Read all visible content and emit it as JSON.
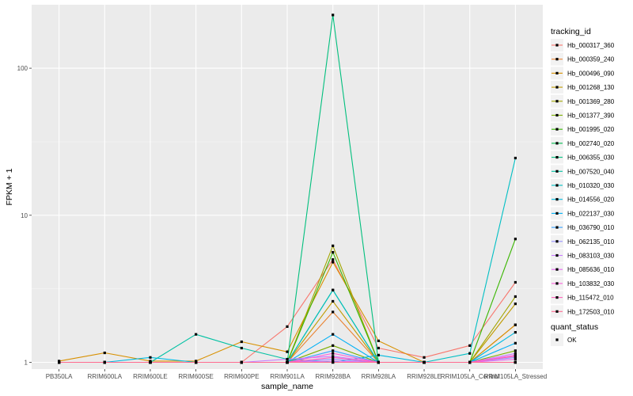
{
  "chart_data": {
    "type": "line",
    "title": "",
    "xlabel": "sample_name",
    "ylabel": "FPKM + 1",
    "y_scale": "log10",
    "ylim": [
      0.9,
      270
    ],
    "y_ticks": [
      1,
      10,
      100
    ],
    "y_tick_labels": [
      "1",
      "10",
      "100"
    ],
    "grid": true,
    "legend_placement": "right",
    "categories": [
      "PB350LA",
      "RRIM600LA",
      "RRIM600LE",
      "RRIM600SE",
      "RRIM600PE",
      "RRIM901LA",
      "RRIM928BA",
      "RRIM928LA",
      "RRIM928LE",
      "RRIM105LA_Control",
      "RRIM105LA_Stressed"
    ],
    "legend": {
      "color_title": "tracking_id",
      "shape_title": "quant_status",
      "shape_entries": [
        "OK"
      ]
    },
    "series": [
      {
        "name": "Hb_000317_360",
        "color": "#F8766D",
        "values": [
          1.0,
          1.0,
          1.0,
          1.0,
          1.0,
          1.75,
          5.0,
          1.25,
          1.08,
          1.3,
          3.5
        ]
      },
      {
        "name": "Hb_000359_240",
        "color": "#EA8331",
        "values": [
          1.0,
          1.0,
          1.0,
          1.0,
          1.0,
          1.0,
          2.2,
          1.0,
          1.0,
          1.0,
          1.8
        ]
      },
      {
        "name": "Hb_000496_090",
        "color": "#D89000",
        "values": [
          1.02,
          1.16,
          1.02,
          1.02,
          1.38,
          1.18,
          4.8,
          1.4,
          1.0,
          1.0,
          1.8
        ]
      },
      {
        "name": "Hb_001268_130",
        "color": "#C09B00",
        "values": [
          1.0,
          1.0,
          1.0,
          1.0,
          1.0,
          1.0,
          2.6,
          1.0,
          1.0,
          1.0,
          2.5
        ]
      },
      {
        "name": "Hb_001369_280",
        "color": "#A3A500",
        "values": [
          1.0,
          1.0,
          1.0,
          1.0,
          1.0,
          1.0,
          6.2,
          1.0,
          1.0,
          1.0,
          2.8
        ]
      },
      {
        "name": "Hb_001377_390",
        "color": "#7CAE00",
        "values": [
          1.0,
          1.0,
          1.0,
          1.0,
          1.0,
          1.0,
          1.3,
          1.0,
          1.0,
          1.0,
          1.2
        ]
      },
      {
        "name": "Hb_001995_020",
        "color": "#39B600",
        "values": [
          1.0,
          1.0,
          1.0,
          1.0,
          1.0,
          1.0,
          5.6,
          1.0,
          1.0,
          1.0,
          6.9
        ]
      },
      {
        "name": "Hb_002740_020",
        "color": "#00BB4E",
        "values": [
          1.0,
          1.0,
          1.0,
          1.0,
          1.0,
          1.0,
          3.1,
          1.0,
          1.0,
          1.0,
          1.0
        ]
      },
      {
        "name": "Hb_006355_030",
        "color": "#00BF7D",
        "values": [
          1.0,
          1.0,
          1.0,
          1.0,
          1.0,
          1.0,
          230,
          1.0,
          1.0,
          1.0,
          1.0
        ]
      },
      {
        "name": "Hb_007520_040",
        "color": "#00C1A3",
        "values": [
          1.0,
          1.0,
          1.0,
          1.55,
          1.25,
          1.05,
          1.0,
          1.0,
          1.0,
          1.0,
          1.0
        ]
      },
      {
        "name": "Hb_010320_030",
        "color": "#00BFC4",
        "values": [
          1.0,
          1.0,
          1.0,
          1.0,
          1.0,
          1.0,
          3.1,
          1.0,
          1.0,
          1.15,
          24.5
        ]
      },
      {
        "name": "Hb_014556_020",
        "color": "#00BAE0",
        "values": [
          1.0,
          1.0,
          1.08,
          1.0,
          1.0,
          1.0,
          1.0,
          1.12,
          1.0,
          1.0,
          1.6
        ]
      },
      {
        "name": "Hb_022137_030",
        "color": "#00B0F6",
        "values": [
          1.0,
          1.0,
          1.0,
          1.0,
          1.0,
          1.0,
          1.55,
          1.0,
          1.0,
          1.0,
          1.35
        ]
      },
      {
        "name": "Hb_036790_010",
        "color": "#35A2FF",
        "values": [
          1.0,
          1.0,
          1.0,
          1.0,
          1.0,
          1.0,
          1.2,
          1.0,
          1.0,
          1.0,
          1.0
        ]
      },
      {
        "name": "Hb_062135_010",
        "color": "#9590FF",
        "values": [
          1.0,
          1.0,
          1.0,
          1.0,
          1.0,
          1.0,
          1.05,
          1.0,
          1.0,
          1.0,
          1.08
        ]
      },
      {
        "name": "Hb_083103_030",
        "color": "#C77CFF",
        "values": [
          1.0,
          1.0,
          1.0,
          1.0,
          1.0,
          1.05,
          1.1,
          1.0,
          1.0,
          1.0,
          1.15
        ]
      },
      {
        "name": "Hb_085636_010",
        "color": "#E76BF3",
        "values": [
          1.0,
          1.0,
          1.0,
          1.0,
          1.0,
          1.0,
          1.02,
          1.0,
          1.0,
          1.0,
          1.05
        ]
      },
      {
        "name": "Hb_103832_030",
        "color": "#FA62DB",
        "values": [
          1.0,
          1.0,
          1.0,
          1.0,
          1.0,
          1.0,
          1.15,
          1.0,
          1.0,
          1.0,
          1.12
        ]
      },
      {
        "name": "Hb_115472_010",
        "color": "#FF62BC",
        "values": [
          1.0,
          1.0,
          1.0,
          1.0,
          1.0,
          1.0,
          1.08,
          1.0,
          1.0,
          1.0,
          1.1
        ]
      },
      {
        "name": "Hb_172503_010",
        "color": "#FF6C91",
        "values": [
          1.0,
          1.0,
          1.0,
          1.0,
          1.0,
          1.0,
          1.0,
          1.0,
          1.0,
          1.0,
          1.0
        ]
      }
    ]
  }
}
